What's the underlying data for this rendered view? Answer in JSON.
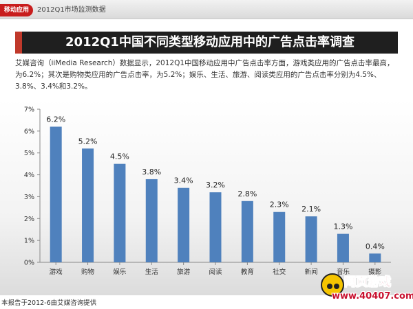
{
  "header": {
    "tag": "移动应用",
    "breadcrumb": "2012Q1市场监测数据"
  },
  "title": "2012Q1中国不同类型移动应用中的广告点击率调查",
  "description": "艾媒咨询（iiMedia Research）数据显示，2012Q1中国移动应用中广告点击率方面，游戏类应用的广告点击率最高，为6.2%；其次是购物类应用的广告点击率，为5.2%；娱乐、生活、旅游、阅读类应用的广告点击率分别为4.5%、3.8%、3.4%和3.2%。",
  "footer": "本报告于2012-6由艾媒咨询提供",
  "watermark": {
    "title": "网页游戏",
    "url": "www.40407.com"
  },
  "colors": {
    "bar": "#4f81bd",
    "title_bg": "#1f1f1f",
    "accent": "#c0392b"
  },
  "chart_data": {
    "type": "bar",
    "categories": [
      "游戏",
      "购物",
      "娱乐",
      "生活",
      "旅游",
      "阅读",
      "教育",
      "社交",
      "新闻",
      "音乐",
      "摄影"
    ],
    "values": [
      6.2,
      5.2,
      4.5,
      3.8,
      3.4,
      3.2,
      2.8,
      2.3,
      2.1,
      1.3,
      0.4
    ],
    "value_labels": [
      "6.2%",
      "5.2%",
      "4.5%",
      "3.8%",
      "3.4%",
      "3.2%",
      "2.8%",
      "2.3%",
      "2.1%",
      "1.3%",
      "0.4%"
    ],
    "y_ticks": [
      "0%",
      "1%",
      "2%",
      "3%",
      "4%",
      "5%",
      "6%",
      "7%"
    ],
    "ylim": [
      0,
      7
    ],
    "ylabel": "",
    "xlabel": "",
    "grid": false
  }
}
